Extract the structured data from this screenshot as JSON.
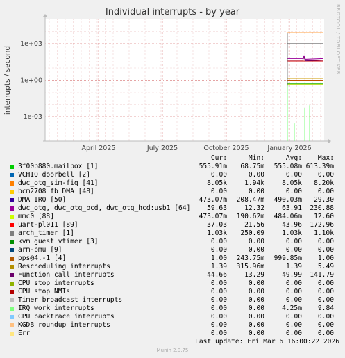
{
  "title": "Individual interrupts - by year",
  "side_label": "RRDTOOL / TOBI OETIKER",
  "chart_data": {
    "type": "line",
    "title": "Individual interrupts - by year",
    "ylabel": "interrupts / second",
    "yscale": "log",
    "ylim": [
      1e-05,
      100000
    ],
    "ytick_labels": [
      "1e+03",
      "1e+00",
      "1e-03"
    ],
    "xtick_labels": [
      "April 2025",
      "July 2025",
      "October 2025",
      "January 2026"
    ],
    "grid": true,
    "series": [
      {
        "name": "3f00b880.mailbox [1]",
        "color": "#00cc00",
        "level": 0.5559
      },
      {
        "name": "dwc_otg_sim-fiq [41]",
        "color": "#ff8000",
        "level": 8050
      },
      {
        "name": "DMA IRQ [50]",
        "color": "#1a00cc",
        "level": 0.473
      },
      {
        "name": "dwc_otg, dwc_otg_pcd, dwc_otg_hcd:usb1 [64]",
        "color": "#990099",
        "level": 59.63
      },
      {
        "name": "mmc0 [88]",
        "color": "#ccff00",
        "level": 0.473
      },
      {
        "name": "uart-pl011 [89]",
        "color": "#cc0000",
        "level": 37.03
      },
      {
        "name": "arch_timer [1]",
        "color": "#808080",
        "level": 1030
      },
      {
        "name": "pps@4.-1 [4]",
        "color": "#c05000",
        "level": 1.0
      },
      {
        "name": "Rescheduling interrupts",
        "color": "#cc9900",
        "level": 1.39
      },
      {
        "name": "Function call interrupts",
        "color": "#6a006a",
        "level": 44.66
      },
      {
        "name": "IRQ work interrupts",
        "color": "#80ff80",
        "level": 0.0001
      }
    ]
  },
  "legend": {
    "headers": {
      "cur": "Cur:",
      "min": "Min:",
      "avg": "Avg:",
      "max": "Max:"
    },
    "rows": [
      {
        "color": "#00cc00",
        "name": "3f00b880.mailbox [1]",
        "cur": "555.91m",
        "min": "68.75m",
        "avg": "555.08m",
        "max": "613.39m"
      },
      {
        "color": "#0066b3",
        "name": "VCHIQ doorbell [2]",
        "cur": "0.00",
        "min": "0.00",
        "avg": "0.00",
        "max": "0.00"
      },
      {
        "color": "#ff8000",
        "name": "dwc_otg_sim-fiq [41]",
        "cur": "8.05k",
        "min": "1.94k",
        "avg": "8.05k",
        "max": "8.20k"
      },
      {
        "color": "#ffcc00",
        "name": "bcm2708_fb DMA [48]",
        "cur": "0.00",
        "min": "0.00",
        "avg": "0.00",
        "max": "0.00"
      },
      {
        "color": "#330099",
        "name": "DMA IRQ [50]",
        "cur": "473.07m",
        "min": "208.47m",
        "avg": "490.03m",
        "max": "29.30"
      },
      {
        "color": "#990099",
        "name": "dwc_otg, dwc_otg_pcd, dwc_otg_hcd:usb1 [64]",
        "cur": "59.63",
        "min": "12.32",
        "avg": "63.91",
        "max": "230.88"
      },
      {
        "color": "#ccff00",
        "name": "mmc0 [88]",
        "cur": "473.07m",
        "min": "190.62m",
        "avg": "484.06m",
        "max": "12.60"
      },
      {
        "color": "#ff0000",
        "name": "uart-pl011 [89]",
        "cur": "37.03",
        "min": "21.56",
        "avg": "43.96",
        "max": "172.96"
      },
      {
        "color": "#808080",
        "name": "arch_timer [1]",
        "cur": "1.03k",
        "min": "250.09",
        "avg": "1.03k",
        "max": "1.10k"
      },
      {
        "color": "#008f00",
        "name": "kvm guest vtimer [3]",
        "cur": "0.00",
        "min": "0.00",
        "avg": "0.00",
        "max": "0.00"
      },
      {
        "color": "#00487d",
        "name": "arm-pmu [9]",
        "cur": "0.00",
        "min": "0.00",
        "avg": "0.00",
        "max": "0.00"
      },
      {
        "color": "#b35a00",
        "name": "pps@4.-1 [4]",
        "cur": "1.00",
        "min": "243.75m",
        "avg": "999.85m",
        "max": "1.00"
      },
      {
        "color": "#b38f00",
        "name": "Rescheduling interrupts",
        "cur": "1.39",
        "min": "315.96m",
        "avg": "1.39",
        "max": "5.49"
      },
      {
        "color": "#6b006b",
        "name": "Function call interrupts",
        "cur": "44.66",
        "min": "13.29",
        "avg": "49.99",
        "max": "141.79"
      },
      {
        "color": "#8fb300",
        "name": "CPU stop interrupts",
        "cur": "0.00",
        "min": "0.00",
        "avg": "0.00",
        "max": "0.00"
      },
      {
        "color": "#b30000",
        "name": "CPU stop NMIs",
        "cur": "0.00",
        "min": "0.00",
        "avg": "0.00",
        "max": "0.00"
      },
      {
        "color": "#bebebe",
        "name": "Timer broadcast interrupts",
        "cur": "0.00",
        "min": "0.00",
        "avg": "0.00",
        "max": "0.00"
      },
      {
        "color": "#80ff80",
        "name": "IRQ work interrupts",
        "cur": "0.00",
        "min": "0.00",
        "avg": "4.25m",
        "max": "9.84"
      },
      {
        "color": "#80c9ff",
        "name": "CPU backtrace interrupts",
        "cur": "0.00",
        "min": "0.00",
        "avg": "0.00",
        "max": "0.00"
      },
      {
        "color": "#ffc080",
        "name": "KGDB roundup interrupts",
        "cur": "0.00",
        "min": "0.00",
        "avg": "0.00",
        "max": "0.00"
      },
      {
        "color": "#ffe680",
        "name": "Err",
        "cur": "0.00",
        "min": "0.00",
        "avg": "0.00",
        "max": "0.00"
      }
    ]
  },
  "last_update": "Last update: Fri Mar  6 16:00:22 2026",
  "munin_version": "Munin 2.0.75"
}
